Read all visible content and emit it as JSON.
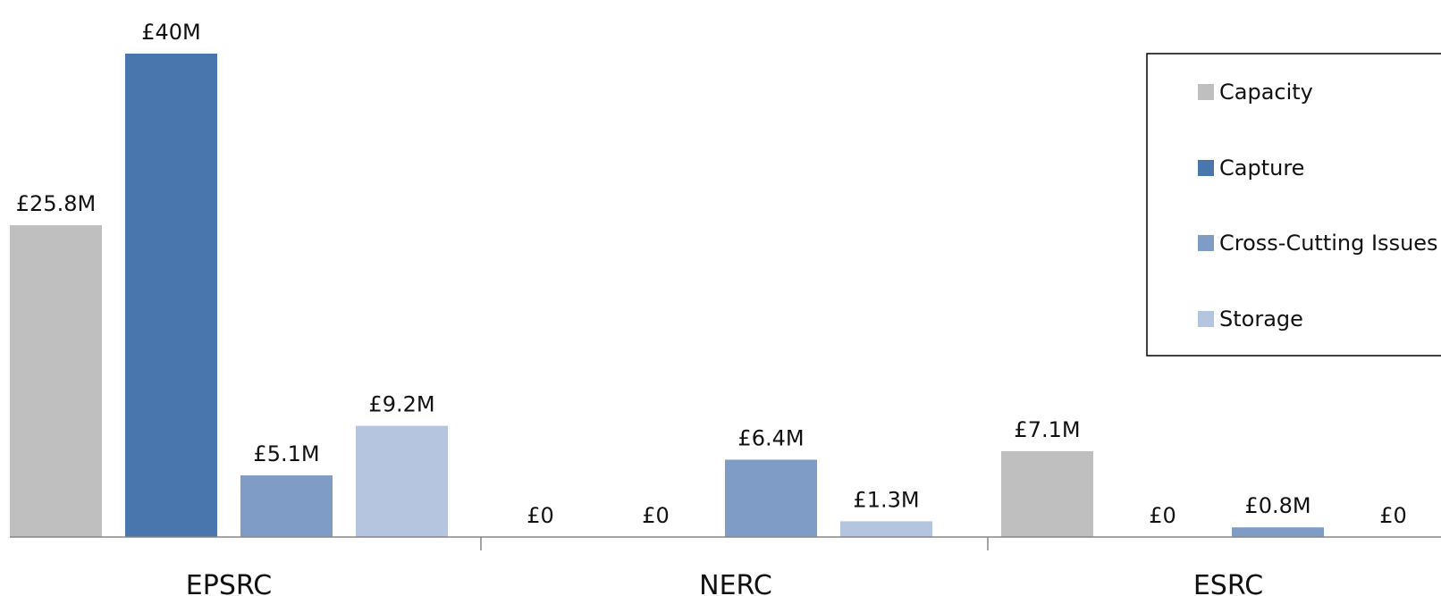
{
  "chart_data": {
    "type": "bar",
    "title": "",
    "xlabel": "",
    "ylabel": "",
    "categories": [
      "EPSRC",
      "NERC",
      "ESRC"
    ],
    "ylim": [
      0,
      40
    ],
    "grid": false,
    "legend_position": "top-right",
    "series": [
      {
        "name": "Capacity",
        "color": "#bfbfbf",
        "values": [
          25.8,
          0,
          7.1
        ],
        "labels": [
          "£25.8M",
          "£0",
          "£7.1M"
        ]
      },
      {
        "name": "Capture",
        "color": "#4a76ae",
        "values": [
          40,
          0,
          0
        ],
        "labels": [
          "£40M",
          "£0",
          "£0"
        ]
      },
      {
        "name": "Cross-Cutting Issues",
        "color": "#7f9cc7",
        "values": [
          5.1,
          6.4,
          0.8
        ],
        "labels": [
          "£5.1M",
          "£6.4M",
          "£0.8M"
        ]
      },
      {
        "name": "Storage",
        "color": "#b5c4df",
        "values": [
          9.2,
          1.3,
          0
        ],
        "labels": [
          "£9.2M",
          "£1.3M",
          "£0"
        ]
      }
    ]
  }
}
